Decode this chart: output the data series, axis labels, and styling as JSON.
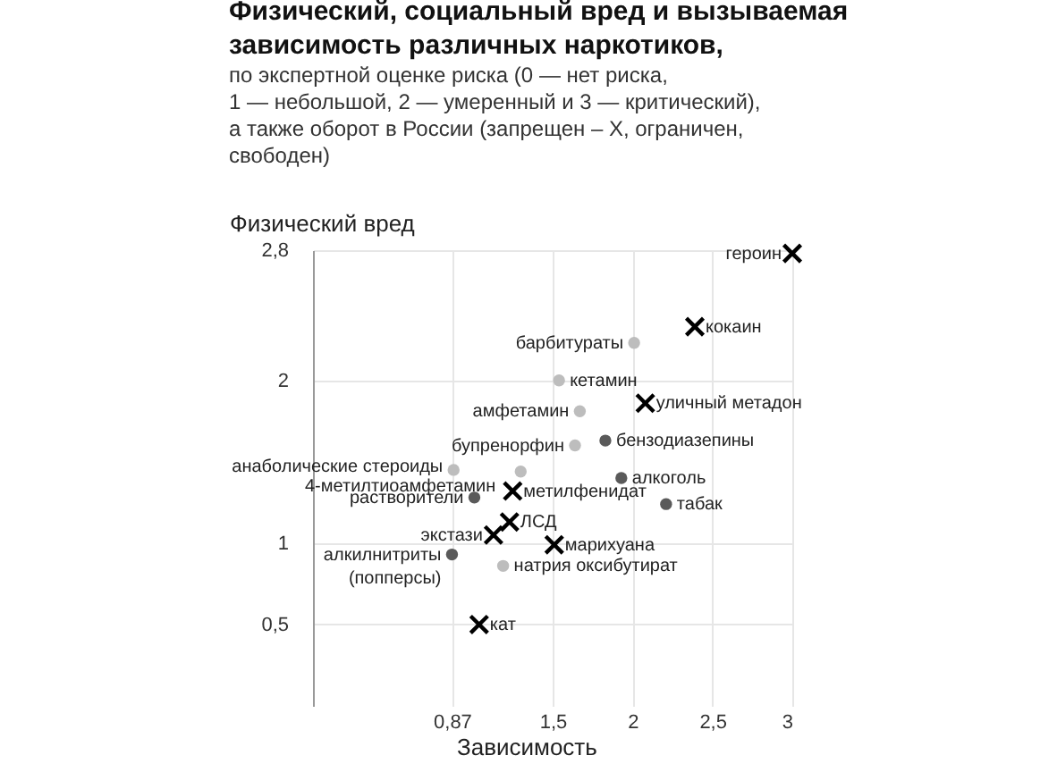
{
  "chart_data": {
    "type": "scatter",
    "title": "Физический, социальный вред и вызываемая\nзависимость различных наркотиков,",
    "subtitle": "по экспертной оценке риска (0 — нет риска,\n1 — небольшой, 2 — умеренный и 3 — критический),\nа также оборот в России (запрещен – X, ограничен,\nсвободен)",
    "xlabel": "Зависимость",
    "ylabel": "Физический вред",
    "xlim": [
      0,
      3
    ],
    "ylim": [
      0,
      2.8
    ],
    "xticks": [
      {
        "value": 0.87,
        "label": "0,87"
      },
      {
        "value": 1.5,
        "label": "1,5"
      },
      2,
      {
        "value": 2.5,
        "label": "2,5"
      },
      3
    ],
    "yticks": [
      {
        "value": 0.5,
        "label": "0,5"
      },
      1,
      2,
      {
        "value": 2.8,
        "label": "2,8"
      }
    ],
    "grid": true,
    "series": [
      {
        "color": "#000000",
        "marker": "cross",
        "x": [
          3.0,
          2.39,
          2.08,
          1.25,
          1.23,
          1.13,
          1.51,
          1.04
        ],
        "values": [
          2.78,
          2.33,
          1.86,
          1.32,
          1.13,
          1.05,
          0.99,
          0.5
        ]
      },
      {
        "color": "#bdbdbd",
        "marker": "circle",
        "x": [
          2.01,
          1.54,
          1.67,
          1.64,
          0.88,
          1.3,
          1.19
        ],
        "values": [
          2.23,
          2.0,
          1.81,
          1.6,
          1.45,
          1.44,
          0.86
        ]
      },
      {
        "color": "#5a5a5a",
        "marker": "circle",
        "x": [
          1.83,
          1.93,
          2.21,
          1.01,
          0.87
        ],
        "values": [
          1.63,
          1.4,
          1.24,
          1.28,
          0.93
        ]
      }
    ],
    "annotations": [
      {
        "text": "героин",
        "x": 3.0,
        "y": 2.78
      },
      {
        "text": "кокаин",
        "x": 2.39,
        "y": 2.33
      },
      {
        "text": "барбитураты",
        "x": 2.01,
        "y": 2.23
      },
      {
        "text": "кетамин",
        "x": 1.54,
        "y": 2.0
      },
      {
        "text": "уличный метадон",
        "x": 2.08,
        "y": 1.86
      },
      {
        "text": "амфетамин",
        "x": 1.67,
        "y": 1.81
      },
      {
        "text": "бензодиазепины",
        "x": 1.83,
        "y": 1.63
      },
      {
        "text": "бупренорфин",
        "x": 1.64,
        "y": 1.6
      },
      {
        "text": "анаболические стероиды",
        "x": 0.88,
        "y": 1.45
      },
      {
        "text": "4-метилтиоамфетамин",
        "x": 1.3,
        "y": 1.44
      },
      {
        "text": "алкоголь",
        "x": 1.93,
        "y": 1.4
      },
      {
        "text": "метилфенидат",
        "x": 1.25,
        "y": 1.32
      },
      {
        "text": "табак",
        "x": 2.21,
        "y": 1.24
      },
      {
        "text": "растворители",
        "x": 1.01,
        "y": 1.28
      },
      {
        "text": "ЛСД",
        "x": 1.23,
        "y": 1.13
      },
      {
        "text": "экстази",
        "x": 1.13,
        "y": 1.05
      },
      {
        "text": "марихуана",
        "x": 1.51,
        "y": 0.99
      },
      {
        "text": "алкилнитриты\n(попперсы)",
        "x": 0.87,
        "y": 0.93
      },
      {
        "text": "натрия оксибутират",
        "x": 1.19,
        "y": 0.86
      },
      {
        "text": "кат",
        "x": 1.04,
        "y": 0.5
      }
    ]
  }
}
